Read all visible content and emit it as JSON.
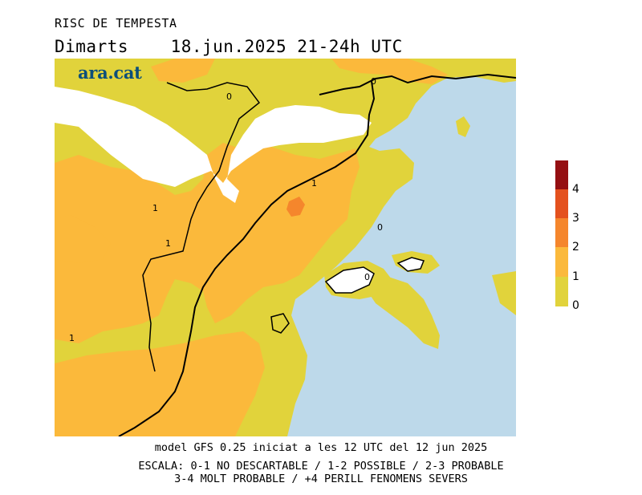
{
  "header": {
    "title": "RISC DE TEMPESTA",
    "date_line": "Dimarts    18.jun.2025 21-24h UTC"
  },
  "logo": {
    "text": "ara.cat"
  },
  "map": {
    "contour_labels": [
      "0",
      "0",
      "0",
      "0",
      "1",
      "1",
      "1",
      "1"
    ],
    "colors": {
      "sea": "#bdd9ea",
      "level_0_1": "#e1d33b",
      "level_1_2": "#fbb93b",
      "level_2_3": "#f5862c",
      "level_3_4": "#e4511e",
      "level_4_plus": "#950f12",
      "no_data": "#ffffff"
    }
  },
  "scale": {
    "labels": [
      "4",
      "3",
      "2",
      "1",
      "0"
    ]
  },
  "footer": {
    "model_line": "model GFS 0.25 iniciat a les 12 UTC del 12 jun 2025",
    "scale_line_1": "ESCALA: 0-1 NO DESCARTABLE / 1-2 POSSIBLE / 2-3 PROBABLE",
    "scale_line_2": "3-4 MOLT PROBABLE / +4 PERILL FENOMENS SEVERS"
  }
}
